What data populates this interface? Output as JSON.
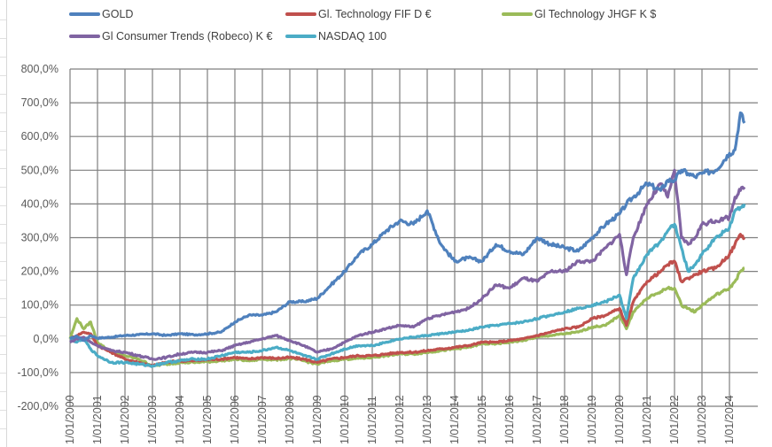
{
  "chart_data": {
    "type": "line",
    "title": "",
    "xlabel": "",
    "ylabel": "",
    "ylim": [
      -200,
      800
    ],
    "y_ticks": [
      "-200,0%",
      "-100,0%",
      "0,0%",
      "100,0%",
      "200,0%",
      "300,0%",
      "400,0%",
      "500,0%",
      "600,0%",
      "700,0%",
      "800,0%"
    ],
    "y_tick_values": [
      -200,
      -100,
      0,
      100,
      200,
      300,
      400,
      500,
      600,
      700,
      800
    ],
    "x_tick_labels": [
      "1/01/2000",
      "1/01/2001",
      "1/01/2002",
      "1/01/2003",
      "1/01/2004",
      "1/01/2005",
      "1/01/2006",
      "1/01/2007",
      "1/01/2008",
      "1/01/2009",
      "1/01/2010",
      "1/01/2011",
      "1/01/2012",
      "1/01/2013",
      "1/01/2014",
      "1/01/2015",
      "1/01/2016",
      "1/01/2017",
      "1/01/2018",
      "1/01/2019",
      "1/01/2020",
      "1/01/2021",
      "1/01/2022",
      "1/01/2023",
      "1/01/2024"
    ],
    "x_tick_years": [
      2000,
      2001,
      2002,
      2003,
      2004,
      2005,
      2006,
      2007,
      2008,
      2009,
      2010,
      2011,
      2012,
      2013,
      2014,
      2015,
      2016,
      2017,
      2018,
      2019,
      2020,
      2021,
      2022,
      2023,
      2024
    ],
    "xlim": [
      2000,
      2024.8
    ],
    "grid": true,
    "legend_position": "top",
    "x": [
      2000.0,
      2000.25,
      2000.5,
      2000.75,
      2001.0,
      2001.5,
      2002.0,
      2002.5,
      2003.0,
      2003.5,
      2004.0,
      2004.5,
      2005.0,
      2005.5,
      2006.0,
      2006.5,
      2007.0,
      2007.5,
      2008.0,
      2008.5,
      2009.0,
      2009.5,
      2010.0,
      2010.5,
      2011.0,
      2011.5,
      2012.0,
      2012.5,
      2013.0,
      2013.5,
      2014.0,
      2014.5,
      2015.0,
      2015.5,
      2016.0,
      2016.5,
      2017.0,
      2017.5,
      2018.0,
      2018.5,
      2019.0,
      2019.5,
      2020.0,
      2020.25,
      2020.5,
      2021.0,
      2021.5,
      2021.75,
      2022.0,
      2022.25,
      2022.5,
      2022.75,
      2023.0,
      2023.5,
      2024.0,
      2024.2,
      2024.4,
      2024.55
    ],
    "series": [
      {
        "name": "GOLD",
        "color": "#4f81bd",
        "values": [
          0,
          8,
          -5,
          10,
          2,
          5,
          10,
          12,
          15,
          10,
          15,
          12,
          15,
          20,
          50,
          70,
          70,
          80,
          110,
          110,
          120,
          160,
          200,
          250,
          280,
          320,
          350,
          340,
          380,
          280,
          230,
          240,
          230,
          280,
          260,
          250,
          300,
          280,
          270,
          260,
          300,
          340,
          370,
          400,
          420,
          460,
          440,
          470,
          470,
          500,
          490,
          480,
          490,
          500,
          550,
          560,
          670,
          640
        ]
      },
      {
        "name": "Gl. Technology FIF D €",
        "color": "#c0504d",
        "values": [
          0,
          10,
          20,
          15,
          -20,
          -40,
          -60,
          -70,
          -80,
          -70,
          -65,
          -65,
          -62,
          -60,
          -55,
          -60,
          -55,
          -58,
          -55,
          -60,
          -70,
          -60,
          -55,
          -50,
          -50,
          -45,
          -40,
          -40,
          -35,
          -30,
          -25,
          -20,
          -10,
          -10,
          -5,
          0,
          10,
          20,
          30,
          35,
          60,
          70,
          90,
          40,
          110,
          170,
          200,
          220,
          230,
          170,
          180,
          190,
          200,
          210,
          250,
          280,
          310,
          300
        ]
      },
      {
        "name": "Gl Technology JHGF K $",
        "color": "#9bbb59",
        "values": [
          0,
          60,
          30,
          50,
          -10,
          -40,
          -50,
          -60,
          -80,
          -75,
          -70,
          -70,
          -68,
          -65,
          -60,
          -65,
          -60,
          -62,
          -58,
          -65,
          -75,
          -65,
          -60,
          -58,
          -55,
          -50,
          -45,
          -45,
          -40,
          -35,
          -30,
          -25,
          -15,
          -15,
          -10,
          -5,
          5,
          10,
          15,
          20,
          35,
          40,
          70,
          30,
          80,
          120,
          140,
          150,
          150,
          100,
          90,
          80,
          100,
          130,
          150,
          170,
          200,
          210
        ]
      },
      {
        "name": "Gl Consumer Trends (Robeco) K €",
        "color": "#8064a2",
        "values": [
          -10,
          0,
          5,
          -10,
          -20,
          -35,
          -40,
          -50,
          -60,
          -55,
          -45,
          -40,
          -40,
          -35,
          -20,
          -10,
          0,
          10,
          -5,
          -20,
          -40,
          -30,
          -10,
          10,
          20,
          30,
          40,
          35,
          60,
          70,
          80,
          90,
          120,
          160,
          150,
          180,
          170,
          200,
          200,
          230,
          230,
          270,
          310,
          190,
          300,
          400,
          460,
          420,
          500,
          300,
          280,
          300,
          340,
          350,
          360,
          420,
          440,
          450
        ]
      },
      {
        "name": "NASDAQ 100",
        "color": "#4bacc6",
        "values": [
          0,
          -10,
          0,
          -30,
          -50,
          -70,
          -70,
          -75,
          -80,
          -70,
          -65,
          -60,
          -60,
          -50,
          -40,
          -40,
          -35,
          -25,
          -35,
          -50,
          -60,
          -45,
          -30,
          -20,
          -20,
          -10,
          0,
          5,
          10,
          15,
          20,
          25,
          35,
          40,
          45,
          50,
          60,
          70,
          80,
          90,
          100,
          110,
          130,
          60,
          180,
          250,
          290,
          320,
          340,
          270,
          200,
          220,
          250,
          300,
          330,
          380,
          390,
          400
        ]
      }
    ]
  }
}
